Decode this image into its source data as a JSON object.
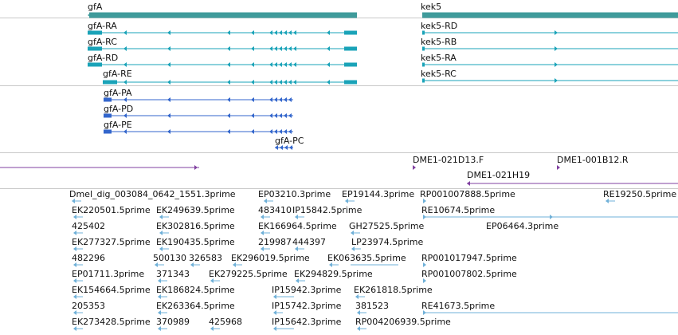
{
  "colors": {
    "gene": "#3f9b9b",
    "transcript_teal": "#1aa3b8",
    "transcript_blue": "#3366cc",
    "clone": "#8040a0",
    "est": "#6fb0d8",
    "divider": "#c9c9c9"
  },
  "genes": [
    {
      "label": "gfA",
      "strand": "-"
    },
    {
      "label": "kek5",
      "strand": "+"
    }
  ],
  "transcripts": [
    {
      "label": "gfA-RA",
      "strand": "-"
    },
    {
      "label": "gfA-RC",
      "strand": "-"
    },
    {
      "label": "gfA-RD",
      "strand": "-"
    },
    {
      "label": "gfA-RE",
      "strand": "-"
    },
    {
      "label": "kek5-RD",
      "strand": "+"
    },
    {
      "label": "kek5-RB",
      "strand": "+"
    },
    {
      "label": "kek5-RA",
      "strand": "+"
    },
    {
      "label": "kek5-RC",
      "strand": "+"
    }
  ],
  "proteins": [
    {
      "label": "gfA-PA"
    },
    {
      "label": "gfA-PD"
    },
    {
      "label": "gfA-PE"
    },
    {
      "label": "gfA-PC"
    }
  ],
  "clones": [
    {
      "label": "DME1-021D13.F"
    },
    {
      "label": "DME1-001B12.R"
    },
    {
      "label": "DME1-021H19"
    }
  ],
  "ests": [
    "Dmel_dig_003084_0642_1551.3prime",
    "EP03210.3prime",
    "EP19144.3prime",
    "RP001007888.5prime",
    "RE19250.5prime",
    "EK220501.5prime",
    "EK249639.5prime",
    "483410",
    "IP15842.5prime",
    "RE10674.5prime",
    "425402",
    "EK302816.5prime",
    "EK166964.5prime",
    "GH27525.5prime",
    "EP06464.3prime",
    "EK277327.5prime",
    "EK190435.5prime",
    "219987",
    "444397",
    "LP23974.5prime",
    "482296",
    "500130",
    "326583",
    "EK296019.5prime",
    "EK063635.5prime",
    "RP001017947.5prime",
    "EP01711.3prime",
    "371343",
    "EK279225.5prime",
    "EK294829.5prime",
    "RP001007802.5prime",
    "EK154664.5prime",
    "EK186824.5prime",
    "IP15942.3prime",
    "EK261818.5prime",
    "205353",
    "EK263364.5prime",
    "IP15742.3prime",
    "381523",
    "RE41673.5prime",
    "EK273428.5prime",
    "370989",
    "425968",
    "IP15642.3prime",
    "RP004206939.5prime"
  ]
}
